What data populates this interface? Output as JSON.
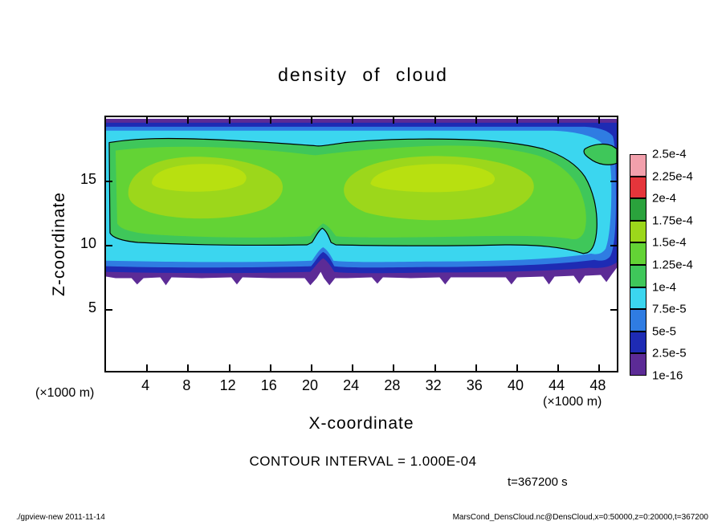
{
  "title": "density of cloud",
  "axes": {
    "x_label": "X-coordinate",
    "y_label": "Z-coordinate",
    "x_unit": "(×1000 m)",
    "y_unit": "(×1000 m)"
  },
  "annotations": {
    "contour_interval": "CONTOUR INTERVAL = 1.000E-04",
    "time": "t=367200 s"
  },
  "footer": {
    "left": "./gpview-new  2011-11-14",
    "right": "MarsCond_DensCloud.nc@DensCloud,x=0:50000,z=0:20000,t=367200"
  },
  "chart_data": {
    "type": "filled-contour",
    "title": "density of cloud",
    "xlabel": "X-coordinate (×1000 m)",
    "ylabel": "Z-coordinate (×1000 m)",
    "xlim": [
      0,
      50
    ],
    "ylim": [
      0,
      20
    ],
    "x_ticks": [
      4,
      8,
      12,
      16,
      20,
      24,
      28,
      32,
      36,
      40,
      44,
      48
    ],
    "y_ticks": [
      5,
      10,
      15
    ],
    "contour_interval": "1.000E-04",
    "time_s": 367200,
    "levels_ascending": [
      "1e-16",
      "2.5e-5",
      "5e-5",
      "7.5e-5",
      "1e-4",
      "1.25e-4",
      "1.5e-4",
      "1.75e-4",
      "2e-4",
      "2.25e-4",
      "2.5e-4"
    ],
    "colorbar": {
      "labels_top_to_bottom": [
        "2.5e-4",
        "2.25e-4",
        "2e-4",
        "1.75e-4",
        "1.5e-4",
        "1.25e-4",
        "1e-4",
        "7.5e-5",
        "5e-5",
        "2.5e-5",
        "1e-16"
      ],
      "colors_top_to_bottom": [
        "#f2a0ac",
        "#e5353b",
        "#2aa23c",
        "#9cd71b",
        "#63d335",
        "#3fc75a",
        "#3bd6ef",
        "#2f7ce2",
        "#1e2bb4",
        "#5c2b96"
      ]
    },
    "colors": {
      "purple": "#5c2b96",
      "navy": "#1e2bb4",
      "blue": "#2f7ce2",
      "cyan": "#3bd6ef",
      "green": "#3fc75a",
      "green_bright": "#63d335",
      "yellow_green": "#9cd71b",
      "yellow_green_bright": "#b8e010",
      "green_dark": "#2aa23c",
      "red": "#e5353b",
      "pink": "#f2a0ac",
      "contour": "#000000"
    },
    "field_summary": {
      "description": "Cloud density field over x = 0–50 km, z = 0–20 km. A cloud layer spans z ≈ 6.5–20 km across the full x range. Interior core (z ≈ 10–18) has values 1e-4 to 1.75e-4 (green to yellow-green, brightest in two lobes near x ≈ 2–18 and x ≈ 23–42 at z ≈ 11–16). Values decrease outward through 7.5e-5 (cyan), 5e-5 (blue), 2.5e-5 (dark blue) to ~0 (purple) at the cloud top (z ≈ 19–20) and jagged cloud base (z ≈ 6.5–7.5). The 1e-4 contour line outlines the green core, with a notch near x ≈ 21 and a small closed pocket near the top-right edge. Below z ≈ 6.5 the field is empty (white)."
    }
  }
}
